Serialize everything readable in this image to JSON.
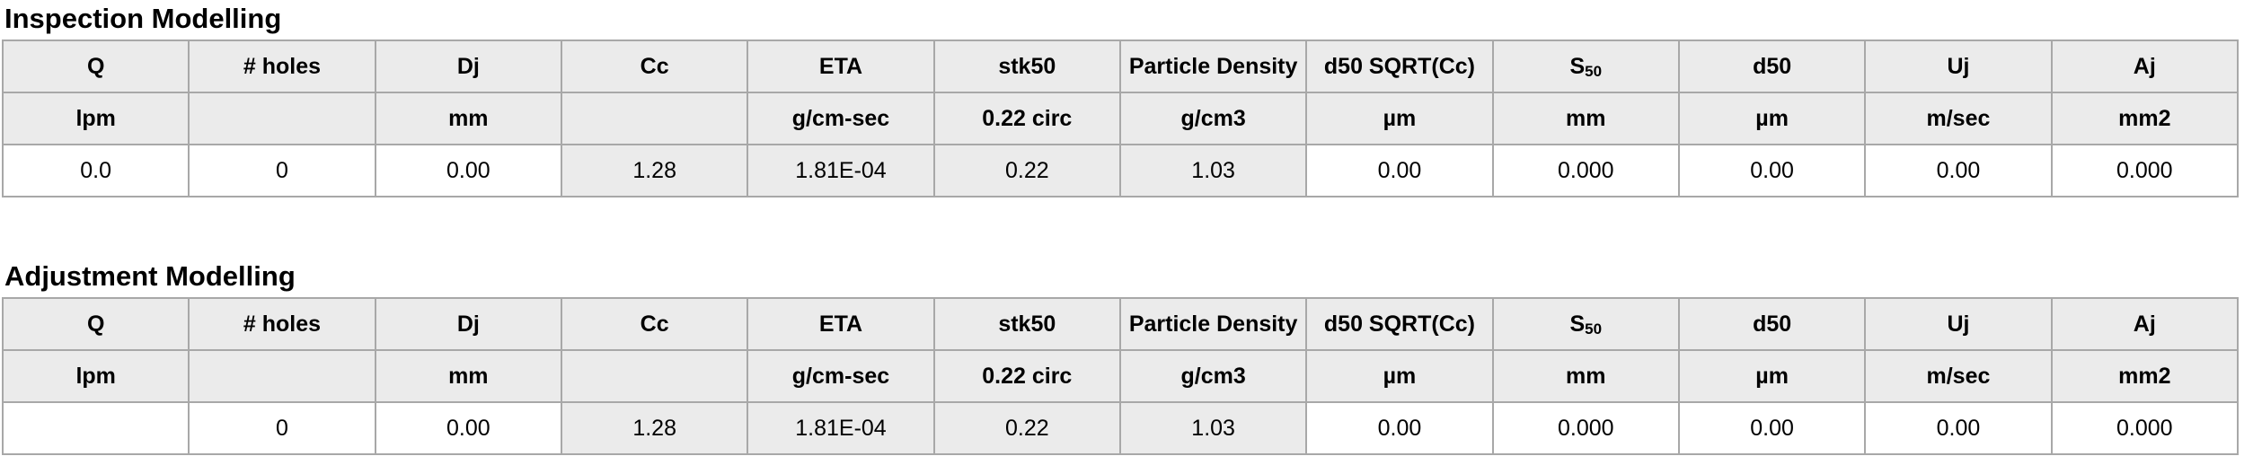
{
  "colors": {
    "grid_border": "#a8a8a8",
    "cell_shaded_bg": "#ebebeb",
    "cell_input_bg": "#ffffff",
    "text": "#000000",
    "page_bg": "#ffffff"
  },
  "tables": [
    {
      "title": "Inspection Modelling",
      "columns": [
        "Q",
        "# holes",
        "Dj",
        "Cc",
        "ETA",
        "stk50",
        "Particle Density",
        "d50 SQRT(Cc)",
        {
          "base": "S",
          "sub": "50"
        },
        "d50",
        "Uj",
        "Aj"
      ],
      "units": [
        "lpm",
        "",
        "mm",
        "",
        "g/cm-sec",
        "0.22 circ",
        "g/cm3",
        "µm",
        "mm",
        "µm",
        "m/sec",
        "mm2"
      ],
      "values": [
        "0.0",
        "0",
        "0.00",
        "1.28",
        "1.81E-04",
        "0.22",
        "1.03",
        "0.00",
        "0.000",
        "0.00",
        "0.00",
        "0.000"
      ],
      "shaded_value_columns": [
        3,
        4,
        5,
        6
      ]
    },
    {
      "title": "Adjustment Modelling",
      "columns": [
        "Q",
        "# holes",
        "Dj",
        "Cc",
        "ETA",
        "stk50",
        "Particle Density",
        "d50 SQRT(Cc)",
        {
          "base": "S",
          "sub": "50"
        },
        "d50",
        "Uj",
        "Aj"
      ],
      "units": [
        "lpm",
        "",
        "mm",
        "",
        "g/cm-sec",
        "0.22 circ",
        "g/cm3",
        "µm",
        "mm",
        "µm",
        "m/sec",
        "mm2"
      ],
      "values": [
        "",
        "0",
        "0.00",
        "1.28",
        "1.81E-04",
        "0.22",
        "1.03",
        "0.00",
        "0.000",
        "0.00",
        "0.00",
        "0.000"
      ],
      "shaded_value_columns": [
        3,
        4,
        5,
        6
      ]
    }
  ]
}
